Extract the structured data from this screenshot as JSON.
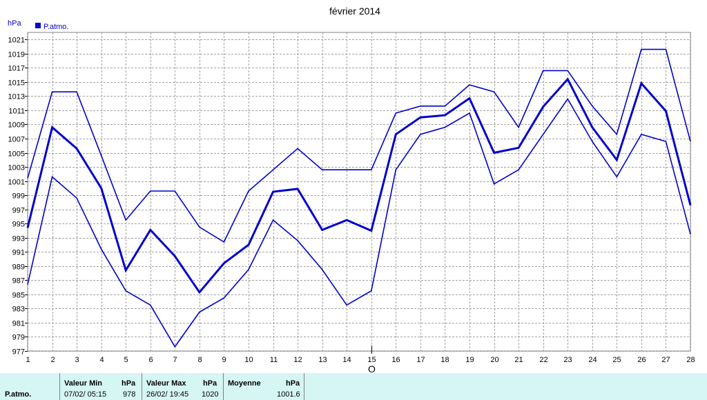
{
  "chart_data": {
    "type": "line",
    "title": "février 2014",
    "unit_label": "hPa",
    "legend": "P.atmo.",
    "legend_position": "top-left",
    "grid": true,
    "colors": {
      "series": "#0000cc",
      "legend_box": "#0000cc",
      "grid": "#a0a0a0",
      "stats_bg": "#d6f5f5"
    },
    "x": [
      1,
      2,
      3,
      4,
      5,
      6,
      7,
      8,
      9,
      10,
      11,
      12,
      13,
      14,
      15,
      16,
      17,
      18,
      19,
      20,
      21,
      22,
      23,
      24,
      25,
      26,
      27,
      28
    ],
    "x_marker": {
      "x": 15,
      "label": "O"
    },
    "ylim": [
      977,
      1022
    ],
    "yticks": [
      977,
      979,
      981,
      983,
      985,
      987,
      989,
      991,
      993,
      995,
      997,
      999,
      1001,
      1003,
      1005,
      1007,
      1009,
      1011,
      1013,
      1015,
      1017,
      1019,
      1021
    ],
    "series": [
      {
        "role": "max",
        "values": [
          1001.4,
          1013.6,
          1013.6,
          1004.6,
          995.5,
          999.6,
          999.6,
          994.5,
          992.4,
          999.6,
          1002.6,
          1005.6,
          1002.6,
          1002.6,
          1002.6,
          1010.6,
          1011.6,
          1011.6,
          1014.6,
          1013.6,
          1008.6,
          1016.6,
          1016.6,
          1011.6,
          1007.6,
          1019.6,
          1019.6,
          1006.6
        ]
      },
      {
        "role": "mean",
        "values": [
          994.4,
          1008.6,
          1005.6,
          1000.0,
          988.4,
          994.1,
          990.4,
          985.3,
          989.4,
          992.0,
          999.5,
          999.9,
          994.1,
          995.5,
          994.0,
          1007.6,
          1010.0,
          1010.3,
          1012.7,
          1005.0,
          1005.7,
          1011.5,
          1015.4,
          1008.6,
          1004.0,
          1014.8,
          1010.9,
          997.6
        ]
      },
      {
        "role": "min",
        "values": [
          986.4,
          1001.6,
          998.6,
          991.4,
          985.5,
          983.5,
          977.6,
          982.5,
          984.5,
          988.5,
          995.5,
          992.6,
          988.5,
          983.5,
          985.5,
          1002.6,
          1007.6,
          1008.6,
          1010.6,
          1000.6,
          1002.6,
          1007.6,
          1012.6,
          1006.6,
          1001.6,
          1007.6,
          1006.6,
          993.5
        ]
      }
    ]
  },
  "stats": {
    "row_label": "P.atmo.",
    "min_header": "Valeur Min",
    "min_unit": "hPa",
    "min_datetime": "07/02/  05:15",
    "min_value": "978",
    "max_header": "Valeur Max",
    "max_unit": "hPa",
    "max_datetime": "26/02/  19:45",
    "max_value": "1020",
    "avg_header": "Moyenne",
    "avg_unit": "hPa",
    "avg_value": "1001.6"
  }
}
